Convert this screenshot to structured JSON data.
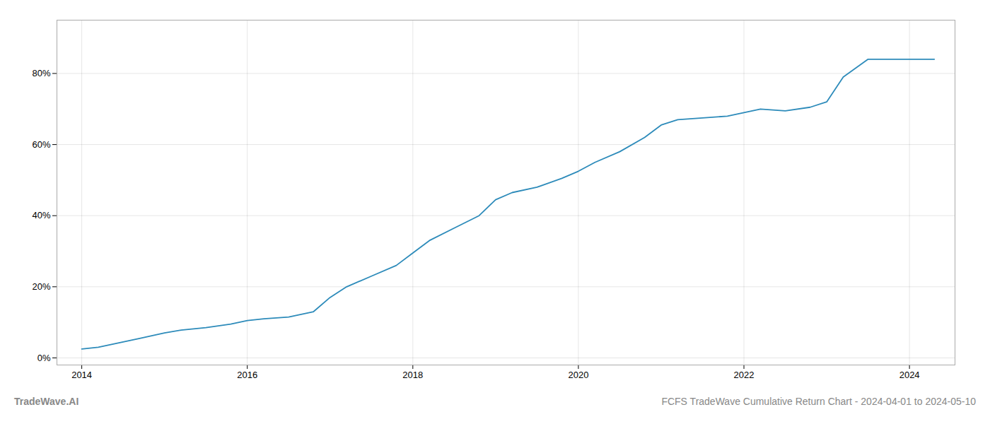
{
  "chart_data": {
    "type": "line",
    "title": "FCFS TradeWave Cumulative Return Chart - 2024-04-01 to 2024-05-10",
    "annotations": [
      "TradeWave.AI"
    ],
    "x": [
      2014.0,
      2014.2,
      2014.4,
      2014.7,
      2015.0,
      2015.2,
      2015.5,
      2015.8,
      2016.0,
      2016.2,
      2016.5,
      2016.8,
      2017.0,
      2017.2,
      2017.5,
      2017.8,
      2018.0,
      2018.2,
      2018.5,
      2018.8,
      2019.0,
      2019.2,
      2019.5,
      2019.8,
      2020.0,
      2020.2,
      2020.5,
      2020.8,
      2021.0,
      2021.2,
      2021.5,
      2021.8,
      2022.0,
      2022.2,
      2022.5,
      2022.8,
      2023.0,
      2023.2,
      2023.5,
      2023.8,
      2024.0,
      2024.3
    ],
    "values": [
      2.5,
      3.0,
      4.0,
      5.5,
      7.0,
      7.8,
      8.5,
      9.5,
      10.5,
      11.0,
      11.5,
      13.0,
      17.0,
      20.0,
      23.0,
      26.0,
      29.5,
      33.0,
      36.5,
      40.0,
      44.5,
      46.5,
      48.0,
      50.5,
      52.5,
      55.0,
      58.0,
      62.0,
      65.5,
      67.0,
      67.5,
      68.0,
      69.0,
      70.0,
      69.5,
      70.5,
      72.0,
      79.0,
      84.0,
      84.0,
      84.0,
      84.0
    ],
    "color": "#2d8bba",
    "xlim": [
      2013.7,
      2024.55
    ],
    "ylim": [
      -2,
      95
    ],
    "xticks": [
      2014,
      2016,
      2018,
      2020,
      2022,
      2024
    ],
    "yticks": [
      {
        "value": 0,
        "label": "0%"
      },
      {
        "value": 20,
        "label": "20%"
      },
      {
        "value": 40,
        "label": "40%"
      },
      {
        "value": 60,
        "label": "60%"
      },
      {
        "value": 80,
        "label": "80%"
      }
    ],
    "grid": true
  }
}
